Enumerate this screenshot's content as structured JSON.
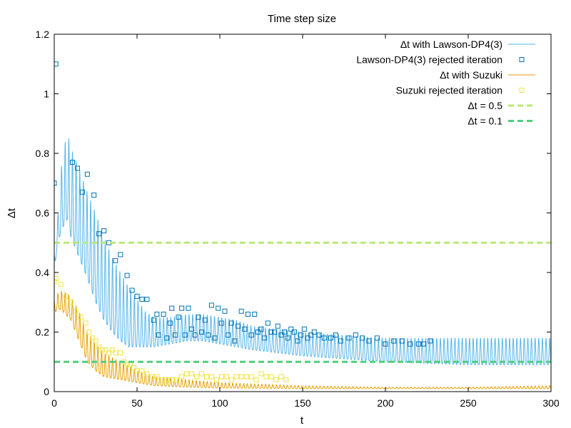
{
  "chart_data": {
    "type": "line",
    "title": "Time step size",
    "xlabel": "t",
    "ylabel": "Δt",
    "xlim": [
      0,
      300
    ],
    "ylim": [
      0,
      1.2
    ],
    "xticks": [
      "0",
      "50",
      "100",
      "150",
      "200",
      "250",
      "300"
    ],
    "yticks": [
      "0",
      "0.2",
      "0.4",
      "0.6",
      "0.8",
      "1",
      "1.2"
    ],
    "grid": false,
    "legend_position": "top-right",
    "colors": {
      "lawson_line": "#56b4e9",
      "lawson_rejected": "#0072b2",
      "suzuki_line": "#e69f00",
      "suzuki_rejected": "#f0e442",
      "ref_05": "#b8e878",
      "ref_01": "#4ecf7e"
    },
    "series": [
      {
        "name": "Δt with Lawson-DP4(3)",
        "kind": "line",
        "style": "oscillating",
        "envelope_x": [
          0,
          2,
          5,
          8,
          10,
          15,
          20,
          25,
          30,
          35,
          40,
          45,
          50,
          55,
          60,
          70,
          80,
          90,
          100,
          110,
          120,
          150,
          200,
          250,
          300
        ],
        "upper": [
          0.45,
          0.58,
          0.8,
          0.87,
          0.82,
          0.75,
          0.67,
          0.6,
          0.52,
          0.45,
          0.4,
          0.35,
          0.31,
          0.27,
          0.25,
          0.25,
          0.26,
          0.26,
          0.25,
          0.24,
          0.22,
          0.2,
          0.18,
          0.18,
          0.18
        ],
        "lower": [
          0.4,
          0.5,
          0.55,
          0.58,
          0.52,
          0.45,
          0.38,
          0.3,
          0.24,
          0.2,
          0.17,
          0.15,
          0.15,
          0.15,
          0.15,
          0.16,
          0.17,
          0.17,
          0.16,
          0.15,
          0.14,
          0.12,
          0.1,
          0.09,
          0.09
        ],
        "oscillation_period": 2.2
      },
      {
        "name": "Lawson-DP4(3) rejected iteration",
        "kind": "points",
        "x": [
          0,
          1,
          11,
          14,
          17,
          20,
          24,
          27,
          30,
          33,
          37,
          40,
          44,
          47,
          50,
          53,
          56,
          60,
          62,
          63,
          66,
          68,
          70,
          71,
          73,
          75,
          77,
          79,
          81,
          83,
          85,
          87,
          89,
          91,
          93,
          95,
          97,
          99,
          101,
          103,
          105,
          107,
          109,
          111,
          113,
          115,
          117,
          119,
          121,
          123,
          125,
          127,
          129,
          131,
          133,
          135,
          137,
          139,
          141,
          143,
          145,
          147,
          149,
          151,
          153,
          155,
          157,
          160,
          163,
          167,
          170,
          173,
          178,
          182,
          186,
          190,
          195,
          200,
          205,
          210,
          215,
          220,
          223,
          227
        ],
        "y": [
          0.7,
          1.1,
          0.77,
          0.75,
          0.67,
          0.73,
          0.66,
          0.53,
          0.54,
          0.5,
          0.44,
          0.46,
          0.39,
          0.34,
          0.32,
          0.31,
          0.31,
          0.24,
          0.26,
          0.19,
          0.26,
          0.18,
          0.23,
          0.28,
          0.19,
          0.25,
          0.28,
          0.19,
          0.28,
          0.21,
          0.19,
          0.25,
          0.2,
          0.24,
          0.19,
          0.29,
          0.18,
          0.28,
          0.23,
          0.27,
          0.19,
          0.23,
          0.17,
          0.22,
          0.27,
          0.21,
          0.26,
          0.19,
          0.26,
          0.2,
          0.21,
          0.18,
          0.23,
          0.2,
          0.2,
          0.22,
          0.19,
          0.2,
          0.18,
          0.21,
          0.2,
          0.17,
          0.19,
          0.21,
          0.18,
          0.19,
          0.2,
          0.19,
          0.18,
          0.18,
          0.19,
          0.17,
          0.18,
          0.19,
          0.18,
          0.17,
          0.18,
          0.16,
          0.17,
          0.17,
          0.16,
          0.16,
          0.16,
          0.17
        ]
      },
      {
        "name": "Δt with Suzuki",
        "kind": "line",
        "style": "oscillating",
        "envelope_x": [
          0,
          2,
          5,
          10,
          15,
          20,
          25,
          30,
          40,
          50,
          60,
          80,
          100,
          150,
          200,
          250,
          300
        ],
        "upper": [
          0.3,
          0.33,
          0.34,
          0.32,
          0.27,
          0.2,
          0.16,
          0.13,
          0.1,
          0.07,
          0.05,
          0.04,
          0.03,
          0.02,
          0.015,
          0.015,
          0.02
        ],
        "lower": [
          0.26,
          0.28,
          0.27,
          0.24,
          0.17,
          0.1,
          0.07,
          0.05,
          0.04,
          0.03,
          0.02,
          0.015,
          0.012,
          0.01,
          0.01,
          0.01,
          0.01
        ],
        "oscillation_period": 2.2
      },
      {
        "name": "Suzuki rejected iteration",
        "kind": "points",
        "x": [
          0,
          1,
          4,
          7,
          10,
          13,
          16,
          19,
          21,
          23,
          25,
          27,
          29,
          31,
          33,
          35,
          37,
          40,
          42,
          44,
          46,
          48,
          50,
          53,
          56,
          59,
          62,
          65,
          68,
          71,
          74,
          77,
          80,
          83,
          86,
          89,
          92,
          95,
          98,
          101,
          104,
          107,
          110,
          113,
          116,
          119,
          122,
          125,
          128,
          131,
          134,
          137,
          140
        ],
        "y": [
          0.37,
          0.38,
          0.36,
          0.32,
          0.3,
          0.27,
          0.25,
          0.23,
          0.2,
          0.18,
          0.17,
          0.15,
          0.14,
          0.14,
          0.13,
          0.14,
          0.13,
          0.13,
          0.1,
          0.09,
          0.09,
          0.08,
          0.07,
          0.07,
          0.06,
          0.05,
          0.05,
          0.04,
          0.04,
          0.04,
          0.04,
          0.05,
          0.06,
          0.06,
          0.05,
          0.06,
          0.05,
          0.05,
          0.04,
          0.05,
          0.05,
          0.04,
          0.05,
          0.05,
          0.05,
          0.05,
          0.04,
          0.06,
          0.05,
          0.05,
          0.04,
          0.05,
          0.04
        ]
      },
      {
        "name": "Δt = 0.5",
        "kind": "hline",
        "y": 0.5
      },
      {
        "name": "Δt = 0.1",
        "kind": "hline",
        "y": 0.1
      }
    ]
  }
}
